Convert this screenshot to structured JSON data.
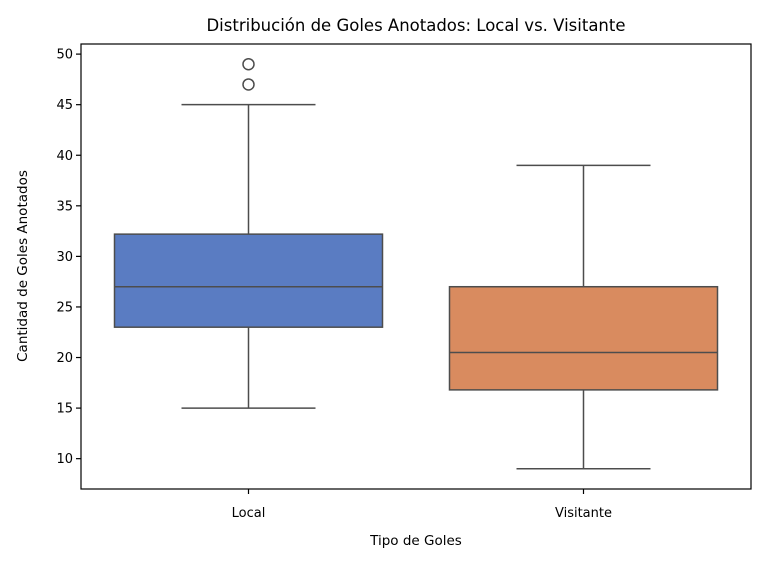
{
  "chart_data": {
    "type": "boxplot",
    "title": "Distribución de Goles Anotados: Local vs. Visitante",
    "xlabel": "Tipo de Goles",
    "ylabel": "Cantidad de Goles Anotados",
    "ylim": [
      7,
      51
    ],
    "yticks": [
      "10",
      "15",
      "20",
      "25",
      "30",
      "35",
      "40",
      "45",
      "50"
    ],
    "grid": false,
    "categories": [
      "Local",
      "Visitante"
    ],
    "boxes": [
      {
        "category": "Local",
        "whisker_low": 15,
        "q1": 23,
        "median": 27,
        "q3": 32.2,
        "whisker_high": 45,
        "outliers": [
          47,
          49
        ],
        "color": "#5a7cc2"
      },
      {
        "category": "Visitante",
        "whisker_low": 9,
        "q1": 16.8,
        "median": 20.5,
        "q3": 27,
        "whisker_high": 39,
        "outliers": [],
        "color": "#d98b5f"
      }
    ]
  }
}
